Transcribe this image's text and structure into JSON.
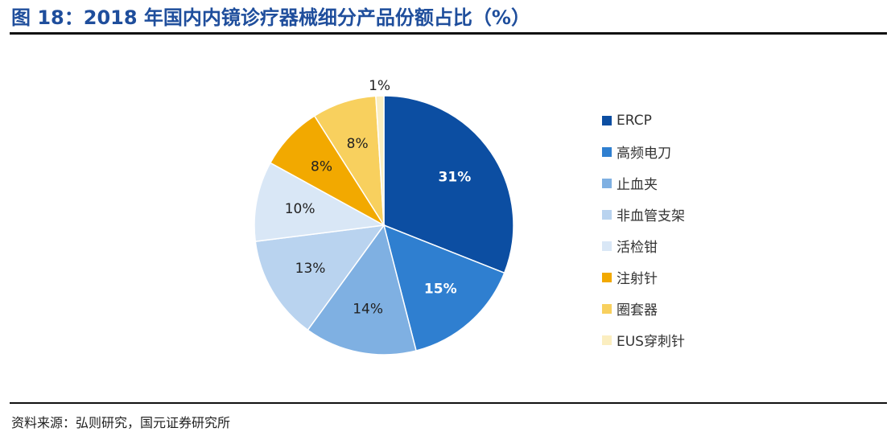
{
  "title": "图 18：2018 年国内内镜诊疗器械细分产品份额占比（%）",
  "source": "资料来源：弘则研究，国元证券研究所",
  "chart_data": {
    "type": "pie",
    "categories": [
      "ERCP",
      "高频电刀",
      "止血夹",
      "非血管支架",
      "活检钳",
      "注射针",
      "圈套器",
      "EUS穿刺针"
    ],
    "values": [
      31,
      15,
      14,
      13,
      10,
      8,
      8,
      1
    ],
    "labels": [
      "31%",
      "15%",
      "14%",
      "13%",
      "10%",
      "8%",
      "8%",
      "1%"
    ],
    "colors": [
      "#0c4ea2",
      "#2f7fd0",
      "#7fb0e2",
      "#b9d3ef",
      "#d9e7f6",
      "#f2a900",
      "#f8d05e",
      "#fbeec0"
    ],
    "label_colors": [
      "#ffffff",
      "#ffffff",
      "#222222",
      "#222222",
      "#222222",
      "#222222",
      "#222222",
      "#222222"
    ],
    "legend_position": "right"
  }
}
